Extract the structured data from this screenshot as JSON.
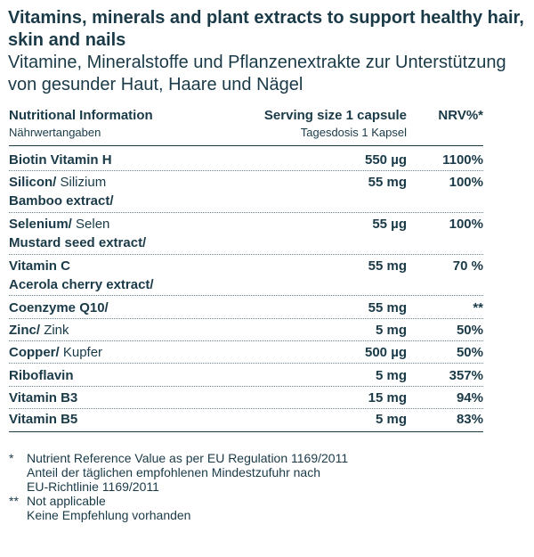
{
  "title": {
    "en": "Vitamins, minerals and plant extracts to support healthy hair, skin and nails",
    "de": "Vitamine, Mineralstoffe und Pflanzenextrakte zur Unterstützung von gesunder Haut, Haare und Nägel"
  },
  "table": {
    "headers": {
      "name": "Nutritional Information",
      "name_de": "Nährwertangaben",
      "serving": "Serving size 1 capsule",
      "serving_de": "Tagesdosis 1 Kapsel",
      "nrv": "NRV%*"
    },
    "rows": [
      {
        "name": "Biotin Vitamin H",
        "name_de": "",
        "sub": "",
        "amount": "550 µg",
        "nrv": "1100%"
      },
      {
        "name": "Silicon/",
        "name_de": "Silizium",
        "sub": "Bamboo extract/",
        "amount": "55 mg",
        "nrv": "100%"
      },
      {
        "name": "Selenium/",
        "name_de": "Selen",
        "sub": "Mustard seed extract/",
        "amount": "55 µg",
        "nrv": "100%"
      },
      {
        "name": "Vitamin C",
        "name_de": "",
        "sub": "Acerola cherry extract/",
        "amount": "55 mg",
        "nrv": "70 %"
      },
      {
        "name": "Coenzyme Q10/",
        "name_de": "",
        "sub": "",
        "amount": "55 mg",
        "nrv": "**"
      },
      {
        "name": "Zinc/",
        "name_de": "Zink",
        "sub": "",
        "amount": "5 mg",
        "nrv": "50%"
      },
      {
        "name": "Copper/",
        "name_de": "Kupfer",
        "sub": "",
        "amount": "500 µg",
        "nrv": "50%"
      },
      {
        "name": "Riboflavin",
        "name_de": "",
        "sub": "",
        "amount": "5 mg",
        "nrv": "357%"
      },
      {
        "name": "Vitamin B3",
        "name_de": "",
        "sub": "",
        "amount": "15 mg",
        "nrv": "94%"
      },
      {
        "name": "Vitamin B5",
        "name_de": "",
        "sub": "",
        "amount": "5 mg",
        "nrv": "83%"
      }
    ]
  },
  "footnotes": {
    "star1_marker": "*",
    "star1_en": "Nutrient Reference Value as per EU Regulation 1169/2011",
    "star1_de_1": "Anteil der täglichen empfohlenen Mindestzufuhr nach",
    "star1_de_2": "EU-Richtlinie 1169/2011",
    "star2_marker": "**",
    "star2_en": "Not applicable",
    "star2_de": "Keine Empfehlung vorhanden"
  }
}
